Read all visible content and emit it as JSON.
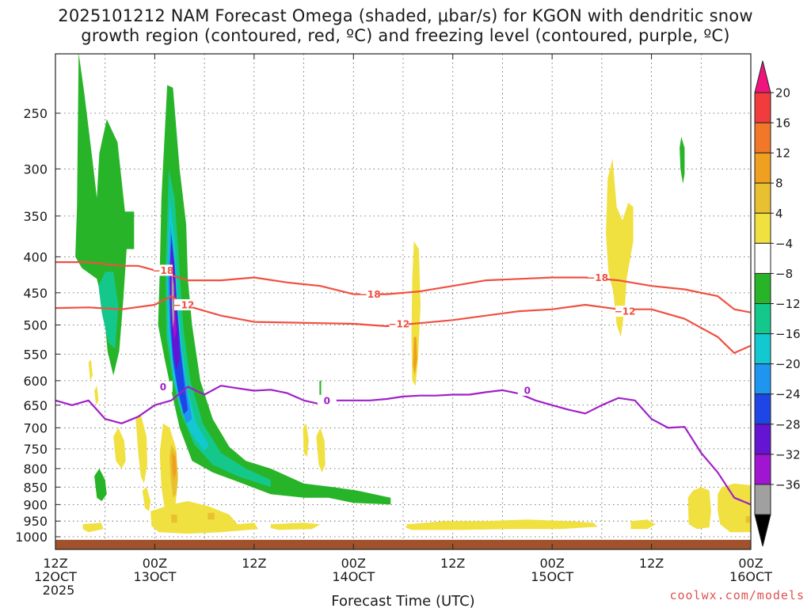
{
  "title_line1": "2025101212 NAM Forecast Omega (shaded, μbar/s) for KGON with dendritic snow",
  "title_line2": "growth region (contoured, red, ºC) and freezing level (contoured, purple, ºC)",
  "watermark": "coolwx.com/models",
  "chart_data": {
    "type": "heatmap",
    "title": "2025101212 NAM Forecast Omega (shaded, μbar/s) for KGON with dendritic snow growth region (contoured, red, ºC) and freezing level (contoured, purple, ºC)",
    "xlabel": "Forecast Time (UTC)",
    "ylabel": "",
    "x_range_hours": [
      0,
      84
    ],
    "y_range_hPa": [
      200,
      1030
    ],
    "y_scale": "log-pressure",
    "y_ticks": [
      250,
      300,
      350,
      400,
      450,
      500,
      550,
      600,
      650,
      700,
      750,
      800,
      850,
      900,
      950,
      1000
    ],
    "x_ticks": [
      {
        "h": 0,
        "line1": "12Z",
        "line2": "12OCT",
        "line3": "2025"
      },
      {
        "h": 12,
        "line1": "00Z",
        "line2": "13OCT",
        "line3": ""
      },
      {
        "h": 24,
        "line1": "12Z",
        "line2": "",
        "line3": ""
      },
      {
        "h": 36,
        "line1": "00Z",
        "line2": "14OCT",
        "line3": ""
      },
      {
        "h": 48,
        "line1": "12Z",
        "line2": "",
        "line3": ""
      },
      {
        "h": 60,
        "line1": "00Z",
        "line2": "15OCT",
        "line3": ""
      },
      {
        "h": 72,
        "line1": "12Z",
        "line2": "",
        "line3": ""
      },
      {
        "h": 84,
        "line1": "00Z",
        "line2": "16OCT",
        "line3": ""
      }
    ],
    "grid": true,
    "colorbar": {
      "labels": [
        "20",
        "16",
        "12",
        "8",
        "4",
        "−4",
        "−8",
        "−12",
        "−16",
        "−20",
        "−24",
        "−28",
        "−32",
        "−36"
      ],
      "colors": [
        "#f0147c",
        "#f03c3c",
        "#f07828",
        "#f0a020",
        "#e8c030",
        "#f0e040",
        "#ffffff",
        "#28b428",
        "#14c88c",
        "#14c8d2",
        "#1e96f0",
        "#1e46e6",
        "#6414d2",
        "#a014d2",
        "#a0a0a0",
        "#000000"
      ]
    },
    "contours": {
      "freezing_level": {
        "label": "0",
        "color": "#a020c8",
        "x": [
          0,
          2,
          4,
          6,
          8,
          10,
          12,
          14,
          16,
          18,
          20,
          22,
          24,
          26,
          28,
          30,
          32,
          34,
          36,
          38,
          40,
          42,
          44,
          46,
          48,
          50,
          52,
          54,
          56,
          58,
          60,
          62,
          64,
          66,
          68,
          70,
          72,
          74,
          76,
          78,
          80,
          82,
          84
        ],
        "p": [
          640,
          650,
          640,
          680,
          690,
          675,
          650,
          640,
          612,
          628,
          610,
          615,
          620,
          618,
          625,
          640,
          648,
          640,
          640,
          640,
          637,
          632,
          630,
          630,
          628,
          628,
          623,
          619,
          626,
          640,
          650,
          660,
          668,
          650,
          635,
          640,
          680,
          700,
          698,
          760,
          810,
          880,
          900
        ]
      },
      "dgz_minus12": {
        "label": "−12",
        "color": "#f05040",
        "x": [
          0,
          4,
          8,
          12,
          14,
          16,
          20,
          24,
          28,
          32,
          36,
          40,
          44,
          48,
          52,
          56,
          60,
          64,
          68,
          72,
          76,
          80,
          82,
          84
        ],
        "p": [
          473,
          472,
          475,
          468,
          455,
          470,
          485,
          495,
          496,
          497,
          498,
          502,
          497,
          492,
          485,
          478,
          475,
          468,
          475,
          475,
          490,
          520,
          548,
          535
        ]
      },
      "dgz_minus18": {
        "label": "−18",
        "color": "#f05040",
        "x": [
          0,
          4,
          8,
          10,
          12,
          16,
          20,
          24,
          28,
          32,
          36,
          40,
          44,
          48,
          52,
          56,
          60,
          64,
          68,
          72,
          76,
          80,
          82,
          84
        ],
        "p": [
          407,
          407,
          412,
          412,
          418,
          432,
          432,
          428,
          435,
          440,
          452,
          452,
          448,
          440,
          432,
          430,
          428,
          428,
          432,
          440,
          445,
          455,
          475,
          480
        ]
      }
    }
  }
}
